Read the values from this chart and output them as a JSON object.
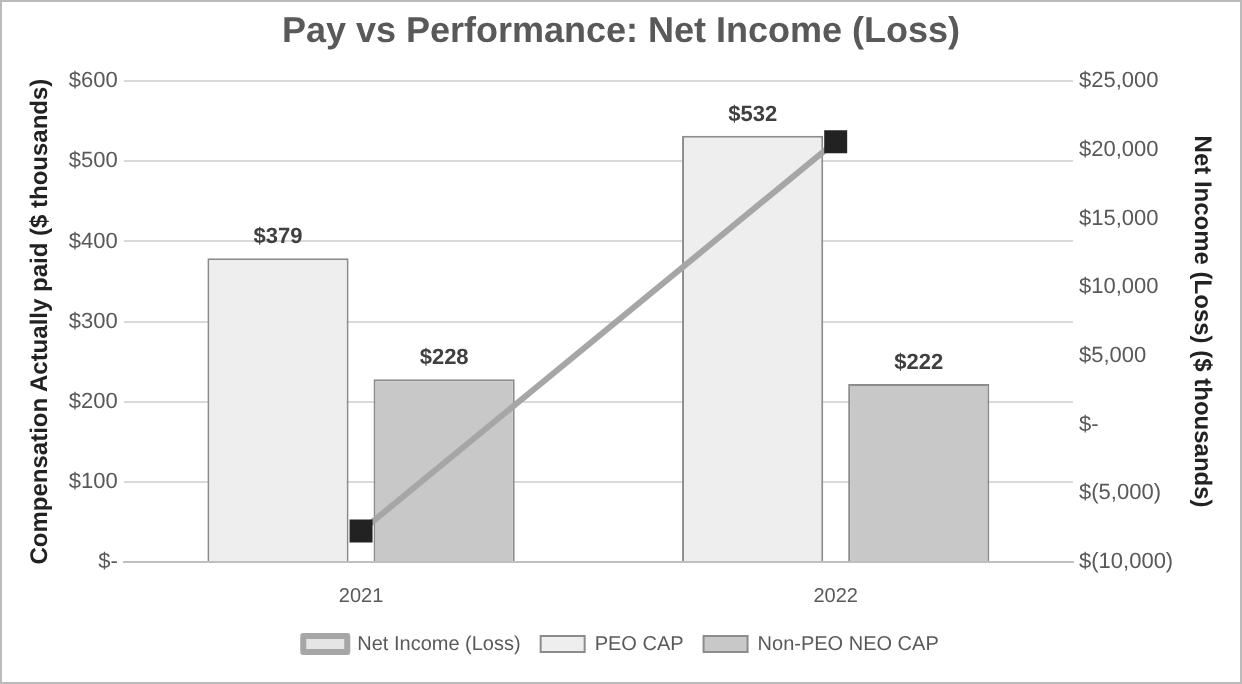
{
  "chart_data": {
    "type": "bar",
    "title": "Pay vs Performance: Net Income (Loss)",
    "ylabel": "Compensation Actually paid ($ thousands)",
    "y2label": "Net Income (Loss) ($ thousands)",
    "categories": [
      "2021",
      "2022"
    ],
    "series": [
      {
        "name": "PEO CAP",
        "color": "#eeeeee",
        "values": [
          379,
          532
        ],
        "value_labels": [
          "$379",
          "$532"
        ]
      },
      {
        "name": "Non-PEO NEO CAP",
        "color": "#c8c8c8",
        "values": [
          228,
          222
        ],
        "value_labels": [
          "$228",
          "$222"
        ]
      },
      {
        "name": "Net Income (Loss)",
        "type": "line",
        "axis": "y2",
        "color": "#a6a6a6",
        "marker": "square",
        "values": [
          -7750,
          20600
        ]
      }
    ],
    "ylim": [
      0,
      600
    ],
    "yticks": [
      {
        "value": 0,
        "label": "$-"
      },
      {
        "value": 100,
        "label": "$100"
      },
      {
        "value": 200,
        "label": "$200"
      },
      {
        "value": 300,
        "label": "$300"
      },
      {
        "value": 400,
        "label": "$400"
      },
      {
        "value": 500,
        "label": "$500"
      },
      {
        "value": 600,
        "label": "$600"
      }
    ],
    "y2lim": [
      -10000,
      25000
    ],
    "y2ticks": [
      {
        "value": -10000,
        "label": "$(10,000)"
      },
      {
        "value": -5000,
        "label": "$(5,000)"
      },
      {
        "value": 0,
        "label": "$-"
      },
      {
        "value": 5000,
        "label": "$5,000"
      },
      {
        "value": 10000,
        "label": "$10,000"
      },
      {
        "value": 15000,
        "label": "$15,000"
      },
      {
        "value": 20000,
        "label": "$20,000"
      },
      {
        "value": 25000,
        "label": "$25,000"
      }
    ],
    "grid": "y",
    "legend": "bottom"
  }
}
